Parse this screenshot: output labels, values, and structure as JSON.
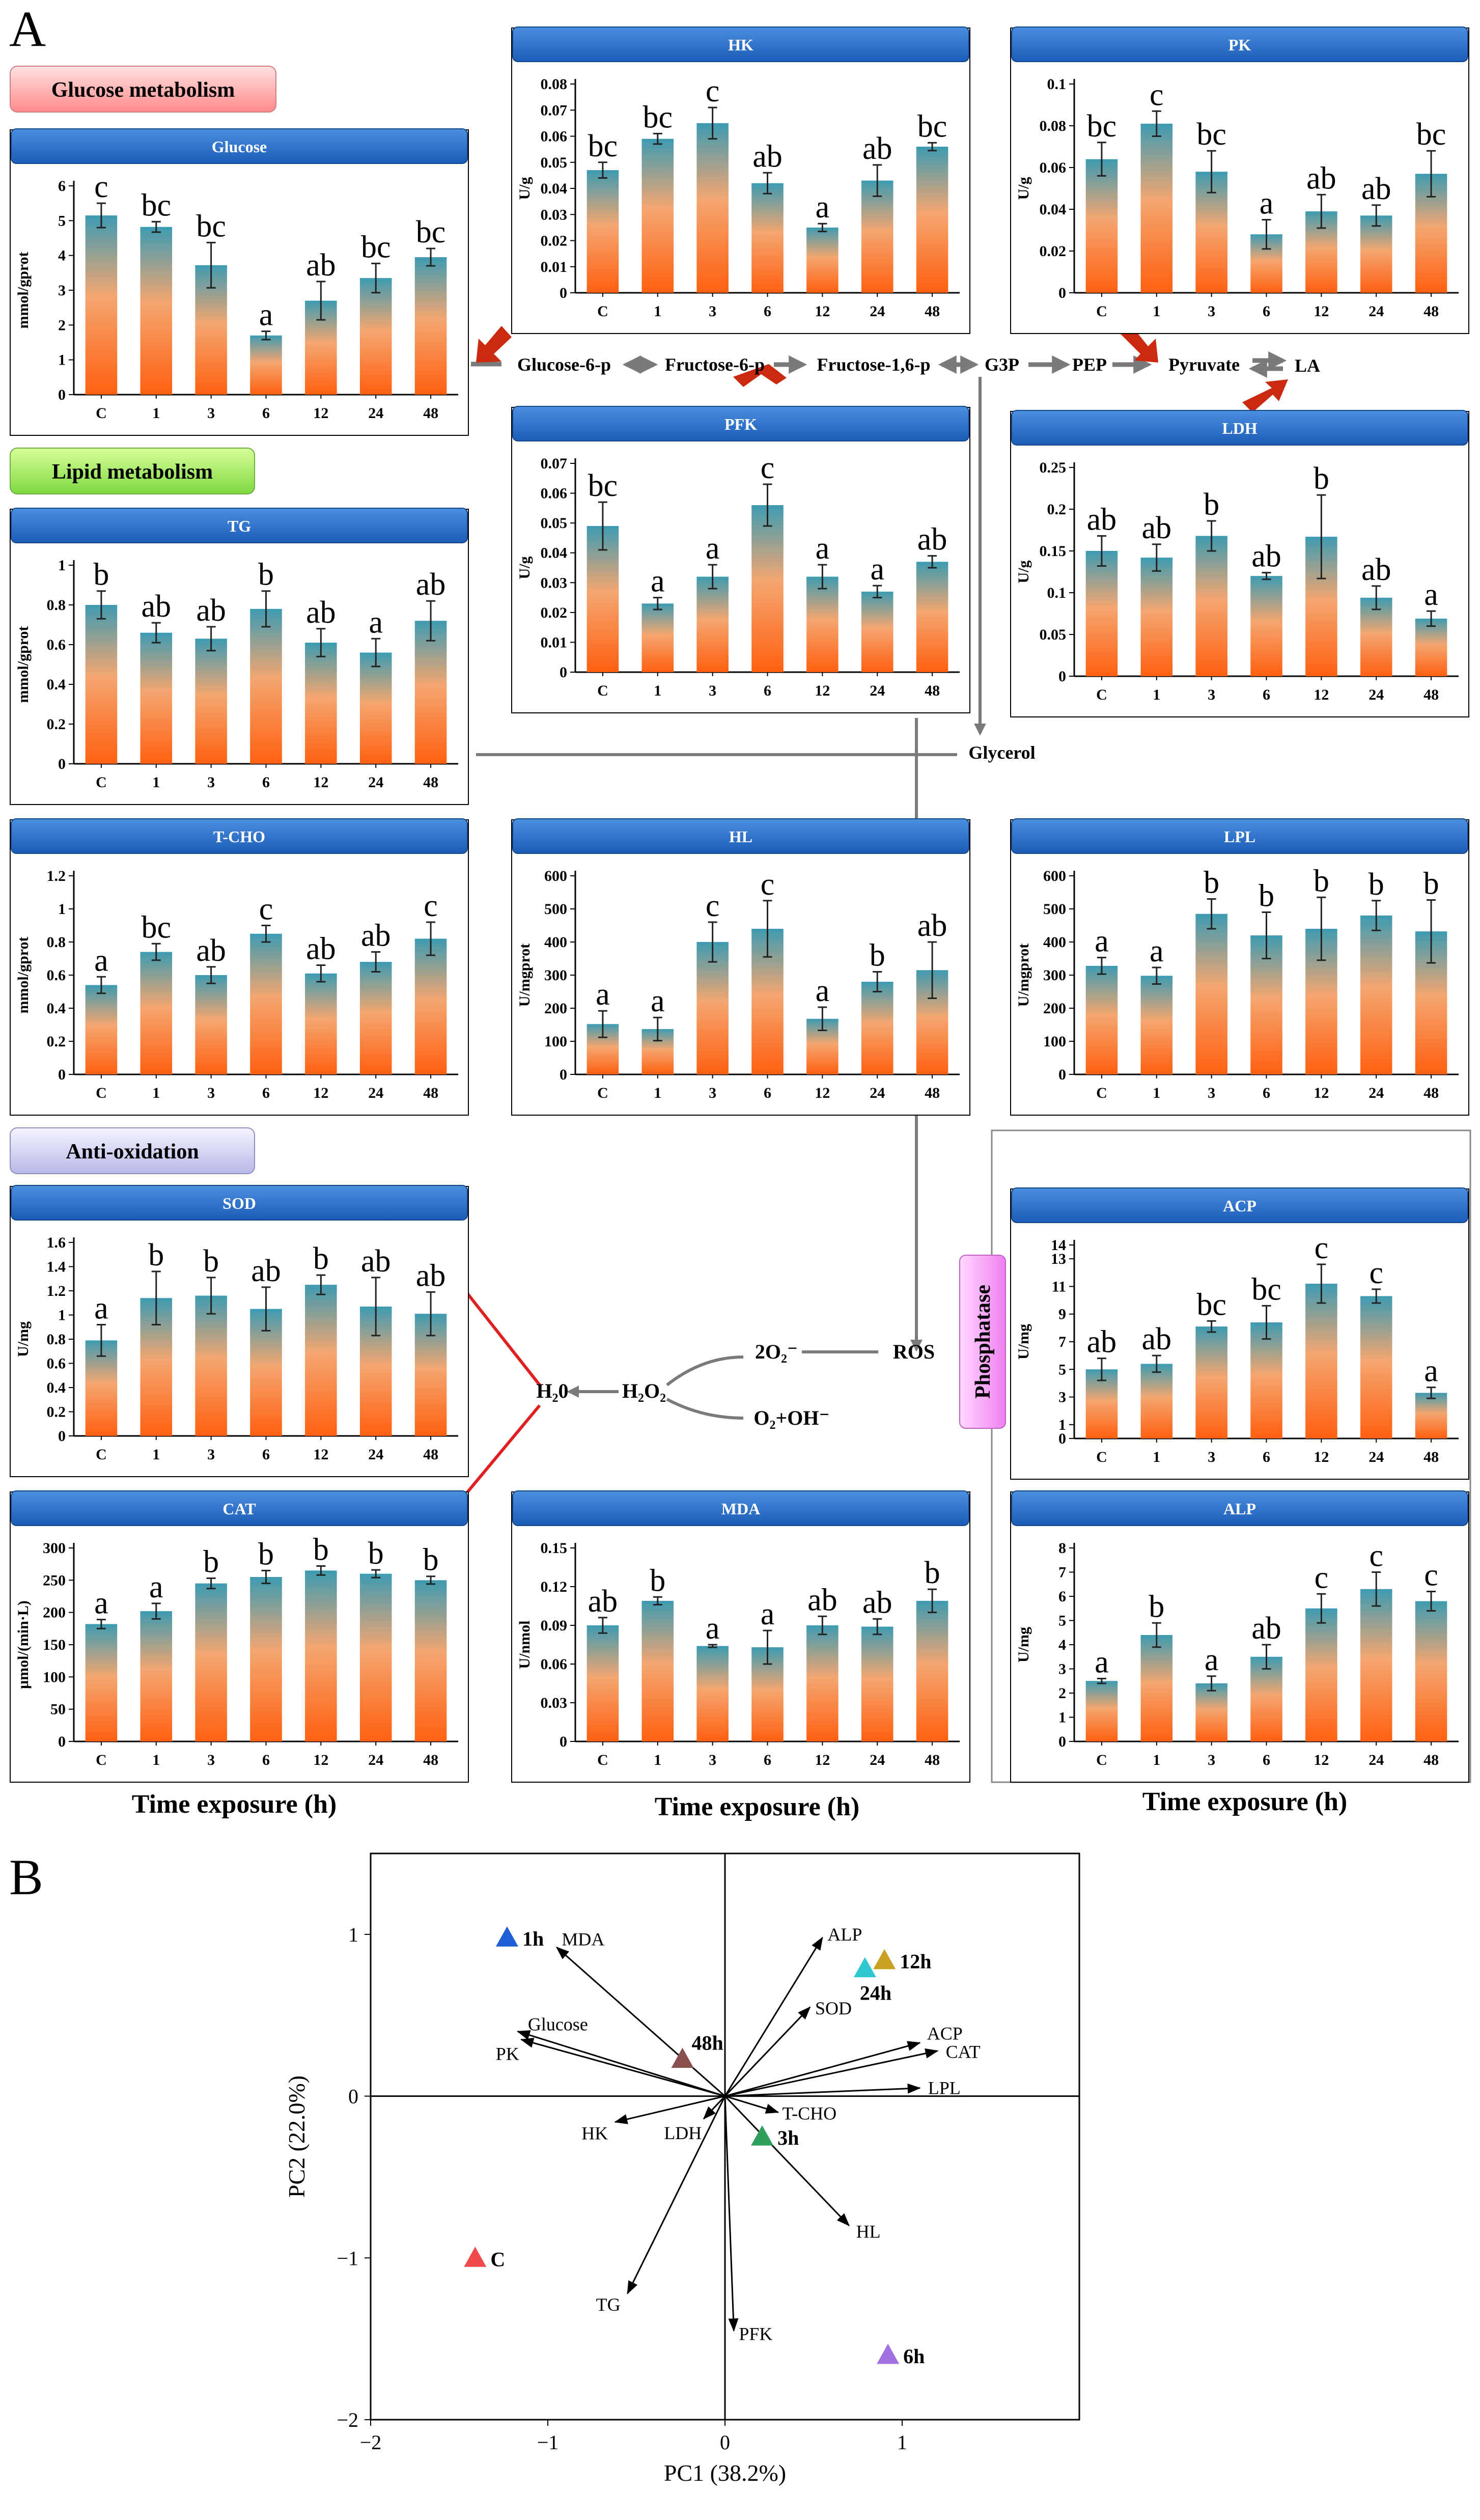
{
  "panel_labels": {
    "a": "A",
    "b": "B"
  },
  "sections": {
    "glucose": "Glucose metabolism",
    "lipid": "Lipid metabolism",
    "antiox": "Anti-oxidation",
    "phosphatase": "Phosphatase"
  },
  "pathway": {
    "glucose6p": "Glucose-6-p",
    "fructose6p": "Fructose-6-p",
    "fructose16p": "Fructose-1,6-p",
    "g3p": "G3P",
    "pep": "PEP",
    "pyruvate": "Pyruvate",
    "la": "LA",
    "glycerol": "Glycerol",
    "h2o": "H₂0",
    "h2o2": "H₂O₂",
    "o2minus": "2O₂⁻",
    "ros": "ROS",
    "o2oh": "O₂+OH⁻"
  },
  "xaxis_title": "Time exposure (h)",
  "colors": {
    "bar_top": "#3d9bb2",
    "bar_bottom": "#ff6a10",
    "title_bg": "#2672c8",
    "arrow_red": "#cc2a10",
    "pathway_gray": "#7a7a7a"
  },
  "chart_data": [
    {
      "id": "glucose",
      "type": "bar",
      "title": "Glucose",
      "ylabel": "mmol/gprot",
      "categories": [
        "C",
        "1",
        "3",
        "6",
        "12",
        "24",
        "48"
      ],
      "values": [
        5.15,
        4.82,
        3.72,
        1.7,
        2.7,
        3.35,
        3.95
      ],
      "errors": [
        0.35,
        0.15,
        0.65,
        0.12,
        0.55,
        0.42,
        0.25
      ],
      "letters": [
        "c",
        "bc",
        "bc",
        "a",
        "ab",
        "bc",
        "bc"
      ],
      "ylim": [
        0,
        6
      ],
      "ticks": [
        0,
        1,
        2,
        3,
        4,
        5,
        6
      ]
    },
    {
      "id": "hk",
      "type": "bar",
      "title": "HK",
      "ylabel": "U/g",
      "categories": [
        "C",
        "1",
        "3",
        "6",
        "12",
        "24",
        "48"
      ],
      "values": [
        0.047,
        0.059,
        0.065,
        0.042,
        0.025,
        0.043,
        0.056
      ],
      "errors": [
        0.003,
        0.002,
        0.006,
        0.004,
        0.0015,
        0.006,
        0.0015
      ],
      "letters": [
        "bc",
        "bc",
        "c",
        "ab",
        "a",
        "ab",
        "bc"
      ],
      "ylim": [
        0,
        0.08
      ],
      "ticks": [
        "0",
        "0.01",
        "0.02",
        "0.03",
        "0.04",
        "0.05",
        "0.06",
        "0.07",
        "0.08"
      ]
    },
    {
      "id": "pk",
      "type": "bar",
      "title": "PK",
      "ylabel": "U/g",
      "categories": [
        "C",
        "1",
        "3",
        "6",
        "12",
        "24",
        "48"
      ],
      "values": [
        0.064,
        0.081,
        0.058,
        0.028,
        0.039,
        0.037,
        0.057
      ],
      "errors": [
        0.008,
        0.006,
        0.01,
        0.007,
        0.008,
        0.005,
        0.011
      ],
      "letters": [
        "bc",
        "c",
        "bc",
        "a",
        "ab",
        "ab",
        "bc"
      ],
      "ylim": [
        0,
        0.1
      ],
      "ticks": [
        "0",
        "0.02",
        "0.04",
        "0.06",
        "0.08",
        "0.1"
      ]
    },
    {
      "id": "pfk",
      "type": "bar",
      "title": "PFK",
      "ylabel": "U/g",
      "categories": [
        "C",
        "1",
        "3",
        "6",
        "12",
        "24",
        "48"
      ],
      "values": [
        0.049,
        0.023,
        0.032,
        0.056,
        0.032,
        0.027,
        0.037
      ],
      "errors": [
        0.008,
        0.002,
        0.004,
        0.007,
        0.004,
        0.002,
        0.002
      ],
      "letters": [
        "bc",
        "a",
        "a",
        "c",
        "a",
        "a",
        "ab"
      ],
      "ylim": [
        0,
        0.07
      ],
      "ticks": [
        "0",
        "0.01",
        "0.02",
        "0.03",
        "0.04",
        "0.05",
        "0.06",
        "0.07"
      ]
    },
    {
      "id": "ldh",
      "type": "bar",
      "title": "LDH",
      "ylabel": "U/g",
      "categories": [
        "C",
        "1",
        "3",
        "6",
        "12",
        "24",
        "48"
      ],
      "values": [
        0.15,
        0.142,
        0.168,
        0.12,
        0.167,
        0.094,
        0.069
      ],
      "errors": [
        0.018,
        0.016,
        0.018,
        0.004,
        0.05,
        0.014,
        0.009
      ],
      "letters": [
        "ab",
        "ab",
        "b",
        "ab",
        "b",
        "ab",
        "a"
      ],
      "ylim": [
        0,
        0.25
      ],
      "ticks": [
        "0",
        "0.05",
        "0.1",
        "0.15",
        "0.2",
        "0.25"
      ]
    },
    {
      "id": "tg",
      "type": "bar",
      "title": "TG",
      "ylabel": "mmol/gprot",
      "categories": [
        "C",
        "1",
        "3",
        "6",
        "12",
        "24",
        "48"
      ],
      "values": [
        0.8,
        0.66,
        0.63,
        0.78,
        0.61,
        0.56,
        0.72
      ],
      "errors": [
        0.07,
        0.05,
        0.06,
        0.09,
        0.07,
        0.07,
        0.1
      ],
      "letters": [
        "b",
        "ab",
        "ab",
        "b",
        "ab",
        "a",
        "ab"
      ],
      "ylim": [
        0,
        1
      ],
      "ticks": [
        "0",
        "0.2",
        "0.4",
        "0.6",
        "0.8",
        "1"
      ]
    },
    {
      "id": "tcho",
      "type": "bar",
      "title": "T-CHO",
      "ylabel": "mmol/gprot",
      "categories": [
        "C",
        "1",
        "3",
        "6",
        "12",
        "24",
        "48"
      ],
      "values": [
        0.54,
        0.74,
        0.6,
        0.85,
        0.61,
        0.68,
        0.82
      ],
      "errors": [
        0.05,
        0.05,
        0.05,
        0.05,
        0.05,
        0.06,
        0.1
      ],
      "letters": [
        "a",
        "bc",
        "ab",
        "c",
        "ab",
        "ab",
        "c"
      ],
      "ylim": [
        0,
        1.2
      ],
      "ticks": [
        "0",
        "0.2",
        "0.4",
        "0.6",
        "0.8",
        "1",
        "1.2"
      ]
    },
    {
      "id": "hl",
      "type": "bar",
      "title": "HL",
      "ylabel": "U/mgprot",
      "categories": [
        "C",
        "1",
        "3",
        "6",
        "12",
        "24",
        "48"
      ],
      "values": [
        152,
        137,
        400,
        440,
        168,
        280,
        315
      ],
      "errors": [
        40,
        35,
        60,
        85,
        35,
        30,
        85
      ],
      "letters": [
        "a",
        "a",
        "c",
        "c",
        "a",
        "b",
        "ab"
      ],
      "ylim": [
        0,
        600
      ],
      "ticks": [
        "0",
        "100",
        "200",
        "300",
        "400",
        "500",
        "600"
      ]
    },
    {
      "id": "lpl",
      "type": "bar",
      "title": "LPL",
      "ylabel": "U/mgprot",
      "categories": [
        "C",
        "1",
        "3",
        "6",
        "12",
        "24",
        "48"
      ],
      "values": [
        328,
        298,
        485,
        420,
        440,
        480,
        432
      ],
      "errors": [
        25,
        25,
        45,
        70,
        95,
        45,
        95
      ],
      "letters": [
        "a",
        "a",
        "b",
        "b",
        "b",
        "b",
        "b"
      ],
      "ylim": [
        0,
        600
      ],
      "ticks": [
        "0",
        "100",
        "200",
        "300",
        "400",
        "500",
        "600"
      ]
    },
    {
      "id": "sod",
      "type": "bar",
      "title": "SOD",
      "ylabel": "U/mg",
      "categories": [
        "C",
        "1",
        "3",
        "6",
        "12",
        "24",
        "48"
      ],
      "values": [
        0.79,
        1.14,
        1.16,
        1.05,
        1.25,
        1.07,
        1.01
      ],
      "errors": [
        0.13,
        0.22,
        0.15,
        0.18,
        0.08,
        0.24,
        0.18
      ],
      "letters": [
        "a",
        "b",
        "b",
        "ab",
        "b",
        "ab",
        "ab"
      ],
      "ylim": [
        0,
        1.6
      ],
      "ticks": [
        "0",
        "0.2",
        "0.4",
        "0.6",
        "0.8",
        "1",
        "1.2",
        "1.4",
        "1.6"
      ]
    },
    {
      "id": "cat",
      "type": "bar",
      "title": "CAT",
      "ylabel": "μmol/(min·L)",
      "categories": [
        "C",
        "1",
        "3",
        "6",
        "12",
        "24",
        "48"
      ],
      "values": [
        182,
        202,
        245,
        255,
        265,
        260,
        250
      ],
      "errors": [
        7,
        12,
        8,
        10,
        7,
        6,
        6
      ],
      "letters": [
        "a",
        "a",
        "b",
        "b",
        "b",
        "b",
        "b"
      ],
      "ylim": [
        0,
        300
      ],
      "ticks": [
        "0",
        "50",
        "100",
        "150",
        "200",
        "250",
        "300"
      ]
    },
    {
      "id": "mda",
      "type": "bar",
      "title": "MDA",
      "ylabel": "U/nmol",
      "categories": [
        "C",
        "1",
        "3",
        "6",
        "12",
        "24",
        "48"
      ],
      "values": [
        0.09,
        0.109,
        0.074,
        0.073,
        0.09,
        0.089,
        0.109
      ],
      "errors": [
        0.006,
        0.003,
        0.001,
        0.013,
        0.007,
        0.006,
        0.009
      ],
      "letters": [
        "ab",
        "b",
        "a",
        "a",
        "ab",
        "ab",
        "b"
      ],
      "ylim": [
        0,
        0.15
      ],
      "ticks": [
        "0",
        "0.03",
        "0.06",
        "0.09",
        "0.12",
        "0.15"
      ]
    },
    {
      "id": "acp",
      "type": "bar",
      "title": "ACP",
      "ylabel": "U/mg",
      "categories": [
        "C",
        "1",
        "3",
        "6",
        "12",
        "24",
        "48"
      ],
      "values": [
        5.0,
        5.4,
        8.1,
        8.4,
        11.2,
        10.3,
        3.3
      ],
      "errors": [
        0.8,
        0.6,
        0.4,
        1.2,
        1.4,
        0.5,
        0.4
      ],
      "letters": [
        "ab",
        "ab",
        "bc",
        "bc",
        "c",
        "c",
        "a"
      ],
      "ylim": [
        0,
        14
      ],
      "ticks": [
        "0",
        "1",
        "3",
        "5",
        "7",
        "9",
        "11",
        "13",
        "14"
      ],
      "tick_values": [
        0,
        1,
        3,
        5,
        7,
        9,
        11,
        13,
        14
      ]
    },
    {
      "id": "alp",
      "type": "bar",
      "title": "ALP",
      "ylabel": "U/mg",
      "categories": [
        "C",
        "1",
        "3",
        "6",
        "12",
        "24",
        "48"
      ],
      "values": [
        2.5,
        4.4,
        2.4,
        3.5,
        5.5,
        6.3,
        5.8
      ],
      "errors": [
        0.1,
        0.5,
        0.3,
        0.5,
        0.6,
        0.7,
        0.4
      ],
      "letters": [
        "a",
        "b",
        "a",
        "ab",
        "c",
        "c",
        "c"
      ],
      "ylim": [
        0,
        8
      ],
      "ticks": [
        "0",
        "1",
        "2",
        "3",
        "4",
        "5",
        "6",
        "7",
        "8"
      ]
    },
    {
      "id": "pca",
      "type": "scatter",
      "title": "",
      "xlabel": "PC1 (38.2%)",
      "ylabel": "PC2 (22.0%)",
      "xlim": [
        -2,
        2
      ],
      "ylim": [
        -2,
        1.5
      ],
      "xticks": [
        "−2",
        "−1",
        "0",
        "1"
      ],
      "xtick_values": [
        -2,
        -1,
        0,
        1
      ],
      "yticks": [
        "−2",
        "−1",
        "0",
        "1"
      ],
      "ytick_values": [
        -2,
        -1,
        0,
        1
      ],
      "points": [
        {
          "label": "1h",
          "x": -1.23,
          "y": 0.98,
          "color": "#1f5fd6"
        },
        {
          "label": "12h",
          "x": 0.9,
          "y": 0.84,
          "color": "#c9a020"
        },
        {
          "label": "24h",
          "x": 0.79,
          "y": 0.79,
          "color": "#2ec8d0"
        },
        {
          "label": "48h",
          "x": -0.24,
          "y": 0.23,
          "color": "#8a5050"
        },
        {
          "label": "3h",
          "x": 0.21,
          "y": -0.25,
          "color": "#2f9e5a"
        },
        {
          "label": "C",
          "x": -1.41,
          "y": -1.0,
          "color": "#f04b4b"
        },
        {
          "label": "6h",
          "x": 0.92,
          "y": -1.6,
          "color": "#a070e0"
        }
      ],
      "loadings": [
        {
          "label": "MDA",
          "x": -0.95,
          "y": 0.92
        },
        {
          "label": "Glucose",
          "x": -1.17,
          "y": 0.4
        },
        {
          "label": "PK",
          "x": -1.15,
          "y": 0.35
        },
        {
          "label": "HK",
          "x": -0.62,
          "y": -0.16
        },
        {
          "label": "LDH",
          "x": -0.12,
          "y": -0.14
        },
        {
          "label": "TG",
          "x": -0.55,
          "y": -1.22
        },
        {
          "label": "PFK",
          "x": 0.05,
          "y": -1.45
        },
        {
          "label": "ALP",
          "x": 0.55,
          "y": 0.98
        },
        {
          "label": "SOD",
          "x": 0.48,
          "y": 0.55
        },
        {
          "label": "ACP",
          "x": 1.1,
          "y": 0.33
        },
        {
          "label": "CAT",
          "x": 1.2,
          "y": 0.28
        },
        {
          "label": "LPL",
          "x": 1.1,
          "y": 0.05
        },
        {
          "label": "T-CHO",
          "x": 0.3,
          "y": -0.1
        },
        {
          "label": "HL",
          "x": 0.7,
          "y": -0.8
        }
      ]
    }
  ]
}
